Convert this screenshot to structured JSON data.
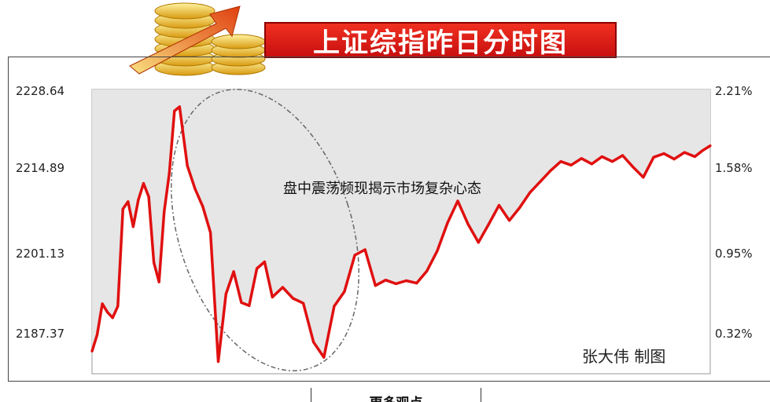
{
  "header": {
    "title": "上证综指昨日分时图"
  },
  "icons": {
    "banner": "gold-coins-rising-arrow-icon"
  },
  "chart_data": {
    "type": "line",
    "title": "上证综指昨日分时图",
    "xlabel": "",
    "ylabel": "",
    "ylim": [
      2181.9,
      2228.64
    ],
    "y_ticks_left": [
      "2228.64",
      "2214.89",
      "2201.13",
      "2187.37"
    ],
    "y_ticks_right": [
      "2.21%",
      "1.58%",
      "0.95%",
      "0.32%"
    ],
    "grid": false,
    "series": [
      {
        "color": "#e01010",
        "x": [
          0,
          2,
          4,
          6,
          8,
          10,
          12,
          14,
          16,
          18,
          20,
          22,
          24,
          26,
          28,
          30,
          32,
          34,
          37,
          40,
          43,
          46,
          49,
          52,
          55,
          58,
          61,
          64,
          67,
          70,
          74,
          78,
          82,
          86,
          90,
          94,
          98,
          102,
          106,
          110,
          114,
          118,
          122,
          126,
          130,
          134,
          138,
          142,
          146,
          150,
          154,
          158,
          162,
          166,
          170,
          174,
          178,
          182,
          186,
          190,
          194,
          198,
          202,
          206,
          210,
          214,
          218,
          222,
          226,
          230,
          234,
          237,
          240
        ],
        "values": [
          2185.6,
          2188.3,
          2193.4,
          2192.0,
          2191.1,
          2193.0,
          2209.0,
          2210.2,
          2206.1,
          2210.5,
          2213.2,
          2211.0,
          2200.2,
          2197.0,
          2208.5,
          2214.9,
          2225.1,
          2225.8,
          2216.1,
          2212.3,
          2209.4,
          2205.1,
          2183.9,
          2195.0,
          2198.7,
          2193.6,
          2193.1,
          2199.2,
          2200.3,
          2194.5,
          2196.1,
          2194.3,
          2193.5,
          2187.1,
          2184.6,
          2193.0,
          2195.4,
          2201.4,
          2202.3,
          2196.4,
          2197.3,
          2196.7,
          2197.2,
          2196.8,
          2198.8,
          2202.1,
          2206.7,
          2210.3,
          2206.5,
          2203.5,
          2206.5,
          2209.6,
          2207.1,
          2209.2,
          2211.7,
          2213.5,
          2215.3,
          2216.8,
          2216.2,
          2217.3,
          2216.4,
          2217.6,
          2216.8,
          2217.8,
          2215.9,
          2214.2,
          2217.5,
          2218.1,
          2217.2,
          2218.3,
          2217.6,
          2218.6,
          2219.4
        ]
      }
    ],
    "annotations": [
      {
        "text": "盘中震荡频现揭示市场复杂心态"
      },
      {
        "text": "张大伟  制图"
      }
    ]
  },
  "footer": {
    "text": "更多观点"
  }
}
